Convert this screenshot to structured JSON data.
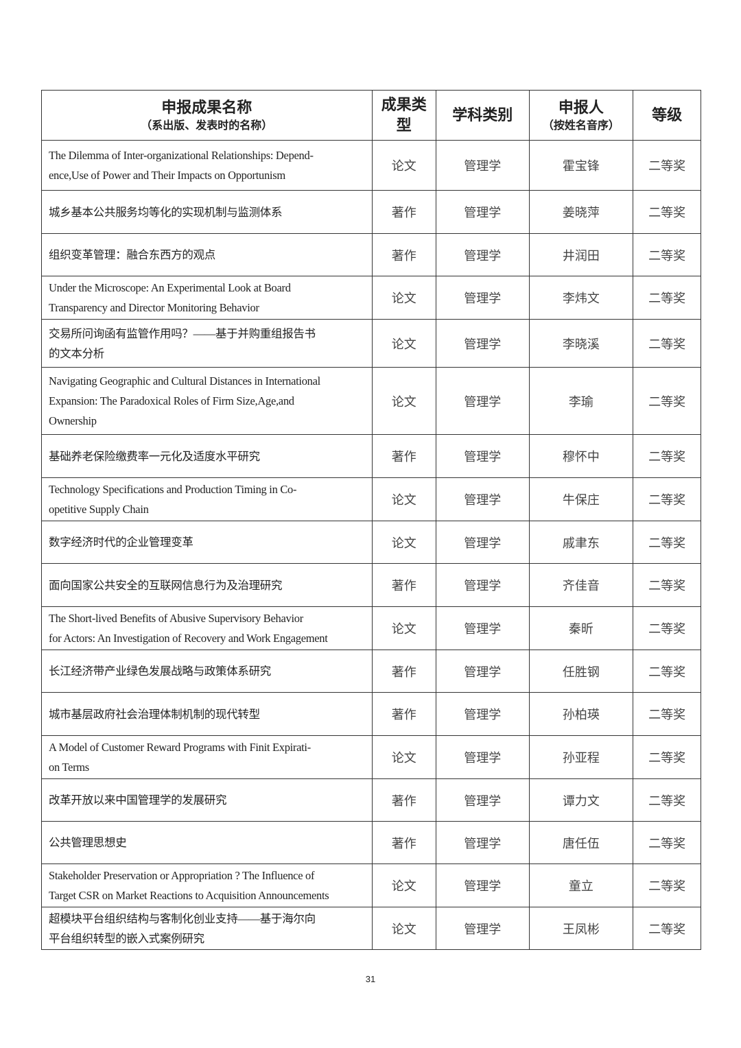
{
  "header": {
    "title": "申报成果名称",
    "title_sub": "（系出版、发表时的名称）",
    "type": "成果类型",
    "discipline": "学科类别",
    "applicant": "申报人",
    "applicant_sub": "（按姓名音序）",
    "level": "等级"
  },
  "rows": [
    {
      "title": "The Dilemma of Inter-organizational Relationships: Depend-\nence,Use of Power and Their Impacts on Opportunism",
      "type": "论文",
      "discipline": "管理学",
      "applicant": "霍宝锋",
      "level": "二等奖",
      "h": 73
    },
    {
      "title": "城乡基本公共服务均等化的实现机制与监测体系",
      "type": "著作",
      "discipline": "管理学",
      "applicant": "姜晓萍",
      "level": "二等奖",
      "h": 63
    },
    {
      "title": "组织变革管理：融合东西方的观点",
      "type": "著作",
      "discipline": "管理学",
      "applicant": "井润田",
      "level": "二等奖",
      "h": 62
    },
    {
      "title": "Under the Microscope: An Experimental Look at Board\nTransparency and Director Monitoring Behavior",
      "type": "论文",
      "discipline": "管理学",
      "applicant": "李炜文",
      "level": "二等奖",
      "h": 63
    },
    {
      "title": "交易所问询函有监管作用吗？——基于并购重组报告书\n的文本分析",
      "type": "论文",
      "discipline": "管理学",
      "applicant": "李晓溪",
      "level": "二等奖",
      "h": 70
    },
    {
      "title": "Navigating Geographic and Cultural Distances in International Expansion: The Paradoxical Roles of Firm Size,Age,and\nOwnership",
      "type": "论文",
      "discipline": "管理学",
      "applicant": "李瑜",
      "level": "二等奖",
      "h": 98
    },
    {
      "title": "基础养老保险缴费率一元化及适度水平研究",
      "type": "著作",
      "discipline": "管理学",
      "applicant": "穆怀中",
      "level": "二等奖",
      "h": 63
    },
    {
      "title": "Technology Specifications and Production Timing in Co-\nopetitive Supply Chain",
      "type": "论文",
      "discipline": "管理学",
      "applicant": "牛保庄",
      "level": "二等奖",
      "h": 63
    },
    {
      "title": "数字经济时代的企业管理变革",
      "type": "论文",
      "discipline": "管理学",
      "applicant": "戚聿东",
      "level": "二等奖",
      "h": 62
    },
    {
      "title": "面向国家公共安全的互联网信息行为及治理研究",
      "type": "著作",
      "discipline": "管理学",
      "applicant": "齐佳音",
      "level": "二等奖",
      "h": 63
    },
    {
      "title": "The Short-lived Benefits of Abusive Supervisory Behavior\nfor Actors: An Investigation of Recovery and Work Engagement",
      "type": "论文",
      "discipline": "管理学",
      "applicant": "秦昕",
      "level": "二等奖",
      "h": 63
    },
    {
      "title": "长江经济带产业绿色发展战略与政策体系研究",
      "type": "著作",
      "discipline": "管理学",
      "applicant": "任胜钢",
      "level": "二等奖",
      "h": 62
    },
    {
      "title": "城市基层政府社会治理体制机制的现代转型",
      "type": "著作",
      "discipline": "管理学",
      "applicant": "孙柏瑛",
      "level": "二等奖",
      "h": 63
    },
    {
      "title": "A Model of Customer Reward Programs with Finit Expirati-\non Terms",
      "type": "论文",
      "discipline": "管理学",
      "applicant": "孙亚程",
      "level": "二等奖",
      "h": 63
    },
    {
      "title": "改革开放以来中国管理学的发展研究",
      "type": "著作",
      "discipline": "管理学",
      "applicant": "谭力文",
      "level": "二等奖",
      "h": 62
    },
    {
      "title": "公共管理思想史",
      "type": "著作",
      "discipline": "管理学",
      "applicant": "唐任伍",
      "level": "二等奖",
      "h": 62
    },
    {
      "title": "Stakeholder Preservation or Appropriation ? The Influence of\nTarget CSR on Market Reactions to Acquisition Announcements",
      "type": "论文",
      "discipline": "管理学",
      "applicant": "童立",
      "level": "二等奖",
      "h": 63
    },
    {
      "title": "超模块平台组织结构与客制化创业支持——基于海尔向\n平台组织转型的嵌入式案例研究",
      "type": "论文",
      "discipline": "管理学",
      "applicant": "王凤彬",
      "level": "二等奖",
      "h": 62
    }
  ],
  "page_number": "31"
}
